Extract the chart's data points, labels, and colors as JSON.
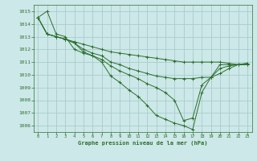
{
  "title": "Graphe pression niveau de la mer (hPa)",
  "bg_color": "#cce8e8",
  "grid_color": "#aacccc",
  "line_color": "#2d6e2d",
  "marker_color": "#2d6e2d",
  "xlim": [
    -0.5,
    23.5
  ],
  "ylim": [
    1005.5,
    1015.5
  ],
  "yticks": [
    1006,
    1007,
    1008,
    1009,
    1010,
    1011,
    1012,
    1013,
    1014,
    1015
  ],
  "xticks": [
    0,
    1,
    2,
    3,
    4,
    5,
    6,
    7,
    8,
    9,
    10,
    11,
    12,
    13,
    14,
    15,
    16,
    17,
    18,
    19,
    20,
    21,
    22,
    23
  ],
  "series": [
    {
      "x": [
        0,
        1,
        2,
        3,
        4,
        5,
        6,
        7,
        8,
        9,
        10,
        11,
        12,
        13,
        14,
        15,
        16,
        17,
        18,
        19,
        20,
        21,
        22,
        23
      ],
      "y": [
        1014.5,
        1015.0,
        1013.2,
        1013.0,
        1012.0,
        1011.7,
        1011.5,
        1011.0,
        1009.9,
        1009.4,
        1008.8,
        1008.3,
        1007.6,
        1006.8,
        1006.5,
        1006.2,
        1006.0,
        1005.7,
        1008.6,
        1009.8,
        1010.8,
        1010.8,
        1010.8,
        1010.8
      ]
    },
    {
      "x": [
        0,
        1,
        2,
        3,
        4,
        5,
        6,
        7,
        8,
        9,
        10,
        11,
        12,
        13,
        14,
        15,
        16,
        17,
        18,
        19,
        20,
        21,
        22,
        23
      ],
      "y": [
        1014.5,
        1013.2,
        1013.0,
        1012.8,
        1012.6,
        1012.4,
        1012.2,
        1012.0,
        1011.8,
        1011.7,
        1011.6,
        1011.5,
        1011.4,
        1011.3,
        1011.2,
        1011.1,
        1011.0,
        1011.0,
        1011.0,
        1011.0,
        1011.0,
        1010.9,
        1010.8,
        1010.8
      ]
    },
    {
      "x": [
        0,
        1,
        2,
        3,
        4,
        5,
        6,
        7,
        8,
        9,
        10,
        11,
        12,
        13,
        14,
        15,
        16,
        17,
        18,
        19,
        20,
        21,
        22,
        23
      ],
      "y": [
        1014.5,
        1013.2,
        1013.0,
        1012.8,
        1012.5,
        1012.0,
        1011.7,
        1011.5,
        1011.0,
        1010.8,
        1010.5,
        1010.3,
        1010.1,
        1009.9,
        1009.8,
        1009.7,
        1009.7,
        1009.7,
        1009.8,
        1009.8,
        1010.5,
        1010.7,
        1010.8,
        1010.9
      ]
    },
    {
      "x": [
        0,
        1,
        2,
        3,
        4,
        5,
        6,
        7,
        8,
        9,
        10,
        11,
        12,
        13,
        14,
        15,
        16,
        17,
        18,
        19,
        20,
        21,
        22,
        23
      ],
      "y": [
        1014.5,
        1013.2,
        1013.0,
        1012.8,
        1012.5,
        1011.8,
        1011.5,
        1011.2,
        1010.7,
        1010.3,
        1010.0,
        1009.7,
        1009.3,
        1009.0,
        1008.6,
        1008.0,
        1006.4,
        1006.6,
        1009.2,
        1009.8,
        1010.1,
        1010.5,
        1010.8,
        1010.9
      ]
    }
  ]
}
